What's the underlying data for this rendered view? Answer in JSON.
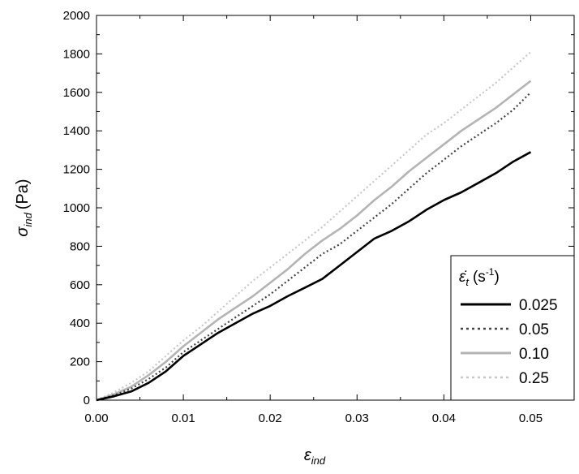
{
  "chart_data": {
    "type": "line",
    "xlabel": "ε",
    "xlabel_sub": "ind",
    "ylabel": "σ",
    "ylabel_sub": "ind",
    "ylabel_unit": "(Pa)",
    "xlim": [
      0,
      0.055
    ],
    "ylim": [
      0,
      2000
    ],
    "x_ticks": [
      0.0,
      0.01,
      0.02,
      0.03,
      0.04,
      0.05
    ],
    "x_tick_labels": [
      "0.00",
      "0.01",
      "0.02",
      "0.03",
      "0.04",
      "0.05"
    ],
    "y_ticks": [
      0,
      200,
      400,
      600,
      800,
      1000,
      1200,
      1400,
      1600,
      1800,
      2000
    ],
    "y_tick_labels": [
      "0",
      "200",
      "400",
      "600",
      "800",
      "1000",
      "1200",
      "1400",
      "1600",
      "1800",
      "2000"
    ],
    "grid": false,
    "legend": {
      "position": "bottom-right",
      "title_symbol": "ε̇",
      "title_sub": "t",
      "title_unit": "(s",
      "title_sup": "-1",
      "title_close": ")"
    },
    "series": [
      {
        "name": "0.025",
        "color": "#000000",
        "style": "solid",
        "x": [
          0.0,
          0.002,
          0.004,
          0.006,
          0.008,
          0.01,
          0.012,
          0.014,
          0.016,
          0.018,
          0.02,
          0.022,
          0.024,
          0.026,
          0.028,
          0.03,
          0.032,
          0.034,
          0.036,
          0.038,
          0.04,
          0.042,
          0.044,
          0.046,
          0.048,
          0.05
        ],
        "y": [
          0,
          20,
          45,
          90,
          150,
          230,
          290,
          350,
          400,
          450,
          490,
          540,
          585,
          630,
          700,
          770,
          840,
          880,
          930,
          990,
          1040,
          1080,
          1130,
          1180,
          1240,
          1290
        ]
      },
      {
        "name": "0.05",
        "color": "#444444",
        "style": "dotted",
        "x": [
          0.0,
          0.002,
          0.004,
          0.006,
          0.008,
          0.01,
          0.012,
          0.014,
          0.016,
          0.018,
          0.02,
          0.022,
          0.024,
          0.026,
          0.028,
          0.03,
          0.032,
          0.034,
          0.036,
          0.038,
          0.04,
          0.042,
          0.044,
          0.046,
          0.048,
          0.05
        ],
        "y": [
          0,
          25,
          60,
          110,
          170,
          250,
          310,
          370,
          430,
          490,
          550,
          620,
          690,
          760,
          810,
          880,
          950,
          1020,
          1100,
          1180,
          1250,
          1320,
          1380,
          1440,
          1510,
          1600
        ]
      },
      {
        "name": "0.10",
        "color": "#b4b4b4",
        "style": "solid",
        "x": [
          0.0,
          0.002,
          0.004,
          0.006,
          0.008,
          0.01,
          0.012,
          0.014,
          0.016,
          0.018,
          0.02,
          0.022,
          0.024,
          0.026,
          0.028,
          0.03,
          0.032,
          0.034,
          0.036,
          0.038,
          0.04,
          0.042,
          0.044,
          0.046,
          0.048,
          0.05
        ],
        "y": [
          0,
          30,
          70,
          130,
          200,
          280,
          350,
          420,
          480,
          540,
          610,
          680,
          760,
          830,
          890,
          960,
          1040,
          1110,
          1190,
          1260,
          1330,
          1400,
          1460,
          1520,
          1590,
          1660
        ]
      },
      {
        "name": "0.25",
        "color": "#c8c8c8",
        "style": "dotted",
        "x": [
          0.0,
          0.002,
          0.004,
          0.006,
          0.008,
          0.01,
          0.012,
          0.014,
          0.016,
          0.018,
          0.02,
          0.022,
          0.024,
          0.026,
          0.028,
          0.03,
          0.032,
          0.034,
          0.036,
          0.038,
          0.04,
          0.042,
          0.044,
          0.046,
          0.048,
          0.05
        ],
        "y": [
          0,
          40,
          90,
          150,
          230,
          310,
          380,
          460,
          540,
          620,
          690,
          760,
          830,
          900,
          980,
          1060,
          1140,
          1220,
          1300,
          1380,
          1440,
          1510,
          1580,
          1650,
          1730,
          1810
        ]
      }
    ]
  }
}
